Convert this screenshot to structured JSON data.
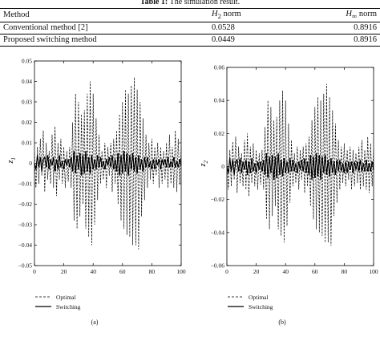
{
  "table": {
    "caption_label": "Table 1:",
    "caption_text": "The simulation result.",
    "headers": {
      "method": "Method",
      "h2_prefix": "H",
      "h2_sub": "2",
      "h2_suffix": " norm",
      "hinf_prefix": "H",
      "hinf_sub": "∞",
      "hinf_suffix": " norm"
    },
    "rows": [
      {
        "method": "Conventional method [2]",
        "h2": "0.0528",
        "hinf": "0.8916"
      },
      {
        "method": "Proposed switching method",
        "h2": "0.0449",
        "hinf": "0.8916"
      }
    ]
  },
  "chart_data": [
    {
      "type": "line",
      "panel": "(a)",
      "ylabel": "z1",
      "xlim": [
        0,
        100
      ],
      "ylim": [
        -0.05,
        0.05
      ],
      "xticks": [
        0,
        20,
        40,
        60,
        80,
        100
      ],
      "yticks": [
        -0.05,
        -0.04,
        -0.03,
        -0.02,
        -0.01,
        0,
        0.01,
        0.02,
        0.03,
        0.04,
        0.05
      ],
      "ytick_labels": [
        "−0.05",
        "−0.04",
        "−0.03",
        "−0.02",
        "−0.01",
        "0",
        "0.01",
        "0.02",
        "0.03",
        "0.04",
        "0.05"
      ],
      "legend": [
        "Optimal",
        "Switching"
      ],
      "series": [
        {
          "name": "Optimal",
          "style": "dashed",
          "x": [
            0,
            1,
            2,
            3,
            4,
            5,
            6,
            7,
            8,
            9,
            10,
            11,
            12,
            13,
            14,
            15,
            16,
            17,
            18,
            19,
            20,
            21,
            22,
            23,
            24,
            25,
            26,
            27,
            28,
            29,
            30,
            31,
            32,
            33,
            34,
            35,
            36,
            37,
            38,
            39,
            40,
            41,
            42,
            43,
            44,
            45,
            46,
            47,
            48,
            49,
            50,
            51,
            52,
            53,
            54,
            55,
            56,
            57,
            58,
            59,
            60,
            61,
            62,
            63,
            64,
            65,
            66,
            67,
            68,
            69,
            70,
            71,
            72,
            73,
            74,
            75,
            76,
            77,
            78,
            79,
            80,
            81,
            82,
            83,
            84,
            85,
            86,
            87,
            88,
            89,
            90,
            91,
            92,
            93,
            94,
            95,
            96,
            97,
            98,
            99,
            100
          ],
          "y": [
            0.005,
            -0.012,
            0.008,
            -0.01,
            0.012,
            -0.006,
            0.016,
            -0.014,
            0.01,
            -0.008,
            0.006,
            -0.01,
            0.014,
            -0.012,
            0.018,
            -0.016,
            0.01,
            -0.008,
            0.012,
            -0.01,
            0.008,
            -0.012,
            0.006,
            -0.009,
            0.008,
            -0.012,
            0.02,
            -0.028,
            0.034,
            -0.032,
            0.03,
            -0.026,
            0.024,
            -0.02,
            0.026,
            -0.032,
            0.034,
            -0.036,
            0.04,
            -0.04,
            0.034,
            -0.03,
            0.022,
            -0.018,
            0.014,
            -0.01,
            0.006,
            -0.008,
            0.01,
            -0.012,
            0.008,
            -0.006,
            0.01,
            -0.014,
            0.012,
            -0.01,
            0.016,
            -0.02,
            0.024,
            -0.028,
            0.03,
            -0.032,
            0.036,
            -0.035,
            0.034,
            -0.036,
            0.038,
            -0.04,
            0.042,
            -0.04,
            0.036,
            -0.042,
            0.03,
            -0.026,
            0.022,
            -0.018,
            0.014,
            -0.012,
            0.01,
            -0.008,
            0.012,
            -0.01,
            0.008,
            -0.006,
            0.01,
            -0.012,
            0.008,
            -0.01,
            0.006,
            -0.008,
            0.01,
            -0.012,
            0.014,
            -0.01,
            0.008,
            -0.012,
            0.016,
            -0.014,
            0.012,
            -0.01,
            0.008
          ]
        },
        {
          "name": "Switching",
          "style": "solid",
          "x": [
            0,
            1,
            2,
            3,
            4,
            5,
            6,
            7,
            8,
            9,
            10,
            11,
            12,
            13,
            14,
            15,
            16,
            17,
            18,
            19,
            20,
            21,
            22,
            23,
            24,
            25,
            26,
            27,
            28,
            29,
            30,
            31,
            32,
            33,
            34,
            35,
            36,
            37,
            38,
            39,
            40,
            41,
            42,
            43,
            44,
            45,
            46,
            47,
            48,
            49,
            50,
            51,
            52,
            53,
            54,
            55,
            56,
            57,
            58,
            59,
            60,
            61,
            62,
            63,
            64,
            65,
            66,
            67,
            68,
            69,
            70,
            71,
            72,
            73,
            74,
            75,
            76,
            77,
            78,
            79,
            80,
            81,
            82,
            83,
            84,
            85,
            86,
            87,
            88,
            89,
            90,
            91,
            92,
            93,
            94,
            95,
            96,
            97,
            98,
            99,
            100
          ],
          "y": [
            0.0,
            -0.003,
            0.004,
            -0.002,
            0.003,
            -0.004,
            0.002,
            0.003,
            -0.002,
            0.004,
            -0.003,
            0.002,
            -0.001,
            0.003,
            -0.004,
            0.002,
            -0.003,
            0.004,
            -0.002,
            0.001,
            -0.003,
            0.002,
            -0.001,
            0.002,
            -0.002,
            0.003,
            -0.004,
            0.006,
            -0.005,
            0.004,
            -0.003,
            0.005,
            -0.006,
            0.004,
            -0.005,
            0.006,
            -0.004,
            0.003,
            -0.005,
            0.004,
            -0.003,
            0.002,
            -0.003,
            0.004,
            -0.002,
            0.003,
            -0.002,
            0.001,
            -0.003,
            0.002,
            -0.001,
            0.003,
            -0.002,
            0.004,
            -0.003,
            0.002,
            -0.004,
            0.005,
            -0.006,
            0.004,
            -0.005,
            0.006,
            -0.004,
            0.005,
            -0.006,
            0.004,
            -0.003,
            0.005,
            -0.004,
            0.003,
            -0.005,
            0.004,
            -0.003,
            0.002,
            -0.004,
            0.003,
            -0.002,
            0.003,
            -0.002,
            0.001,
            -0.003,
            0.002,
            -0.003,
            0.002,
            -0.001,
            0.002,
            -0.003,
            0.002,
            -0.001,
            0.002,
            -0.002,
            0.003,
            -0.002,
            0.001,
            -0.002,
            0.003,
            -0.002,
            0.001,
            -0.002,
            0.002,
            -0.001
          ]
        }
      ]
    },
    {
      "type": "line",
      "panel": "(b)",
      "ylabel": "z2",
      "xlim": [
        0,
        100
      ],
      "ylim": [
        -0.06,
        0.06
      ],
      "xticks": [
        0,
        20,
        40,
        60,
        80,
        100
      ],
      "yticks": [
        -0.06,
        -0.04,
        -0.02,
        0,
        0.02,
        0.04,
        0.06
      ],
      "ytick_labels": [
        "−0.06",
        "−0.04",
        "−0.02",
        "0",
        "0.02",
        "0.04",
        "0.06"
      ],
      "legend": [
        "Optimal",
        "Switching"
      ],
      "series": [
        {
          "name": "Optimal",
          "style": "dashed",
          "x": [
            0,
            1,
            2,
            3,
            4,
            5,
            6,
            7,
            8,
            9,
            10,
            11,
            12,
            13,
            14,
            15,
            16,
            17,
            18,
            19,
            20,
            21,
            22,
            23,
            24,
            25,
            26,
            27,
            28,
            29,
            30,
            31,
            32,
            33,
            34,
            35,
            36,
            37,
            38,
            39,
            40,
            41,
            42,
            43,
            44,
            45,
            46,
            47,
            48,
            49,
            50,
            51,
            52,
            53,
            54,
            55,
            56,
            57,
            58,
            59,
            60,
            61,
            62,
            63,
            64,
            65,
            66,
            67,
            68,
            69,
            70,
            71,
            72,
            73,
            74,
            75,
            76,
            77,
            78,
            79,
            80,
            81,
            82,
            83,
            84,
            85,
            86,
            87,
            88,
            89,
            90,
            91,
            92,
            93,
            94,
            95,
            96,
            97,
            98,
            99,
            100
          ],
          "y": [
            0.004,
            -0.014,
            0.01,
            -0.012,
            0.015,
            -0.008,
            0.018,
            -0.016,
            0.012,
            -0.01,
            0.008,
            -0.012,
            0.016,
            -0.014,
            0.02,
            -0.018,
            0.012,
            -0.01,
            0.014,
            -0.012,
            0.01,
            -0.014,
            0.008,
            -0.011,
            0.01,
            -0.014,
            0.024,
            -0.032,
            0.04,
            -0.038,
            0.036,
            -0.03,
            0.028,
            -0.024,
            0.03,
            -0.038,
            0.04,
            -0.042,
            0.046,
            -0.046,
            0.04,
            -0.036,
            0.026,
            -0.022,
            0.016,
            -0.012,
            0.008,
            -0.01,
            0.012,
            -0.014,
            0.01,
            -0.008,
            0.012,
            -0.016,
            0.014,
            -0.012,
            0.018,
            -0.024,
            0.028,
            -0.032,
            0.036,
            -0.038,
            0.042,
            -0.04,
            0.04,
            -0.042,
            0.044,
            -0.046,
            0.05,
            -0.046,
            0.042,
            -0.048,
            0.034,
            -0.03,
            0.026,
            -0.022,
            0.016,
            -0.014,
            0.012,
            -0.01,
            0.014,
            -0.012,
            0.01,
            -0.008,
            0.012,
            -0.014,
            0.01,
            -0.012,
            0.008,
            -0.01,
            0.012,
            -0.014,
            0.016,
            -0.012,
            0.01,
            -0.014,
            0.018,
            -0.016,
            0.014,
            -0.012,
            0.01
          ]
        },
        {
          "name": "Switching",
          "style": "solid",
          "x": [
            0,
            1,
            2,
            3,
            4,
            5,
            6,
            7,
            8,
            9,
            10,
            11,
            12,
            13,
            14,
            15,
            16,
            17,
            18,
            19,
            20,
            21,
            22,
            23,
            24,
            25,
            26,
            27,
            28,
            29,
            30,
            31,
            32,
            33,
            34,
            35,
            36,
            37,
            38,
            39,
            40,
            41,
            42,
            43,
            44,
            45,
            46,
            47,
            48,
            49,
            50,
            51,
            52,
            53,
            54,
            55,
            56,
            57,
            58,
            59,
            60,
            61,
            62,
            63,
            64,
            65,
            66,
            67,
            68,
            69,
            70,
            71,
            72,
            73,
            74,
            75,
            76,
            77,
            78,
            79,
            80,
            81,
            82,
            83,
            84,
            85,
            86,
            87,
            88,
            89,
            90,
            91,
            92,
            93,
            94,
            95,
            96,
            97,
            98,
            99,
            100
          ],
          "y": [
            0.0,
            -0.004,
            0.005,
            -0.003,
            0.004,
            -0.005,
            0.003,
            0.004,
            -0.003,
            0.005,
            -0.004,
            0.003,
            -0.002,
            0.004,
            -0.005,
            0.003,
            -0.004,
            0.005,
            -0.003,
            0.002,
            -0.004,
            0.003,
            -0.002,
            0.003,
            -0.003,
            0.004,
            -0.005,
            0.008,
            -0.007,
            0.006,
            -0.004,
            0.007,
            -0.008,
            0.006,
            -0.007,
            0.008,
            -0.005,
            0.004,
            -0.006,
            0.005,
            -0.004,
            0.003,
            -0.004,
            0.005,
            -0.003,
            0.004,
            -0.003,
            0.002,
            -0.004,
            0.003,
            -0.002,
            0.004,
            -0.003,
            0.005,
            -0.004,
            0.003,
            -0.005,
            0.007,
            -0.008,
            0.006,
            -0.007,
            0.008,
            -0.006,
            0.007,
            -0.008,
            0.006,
            -0.004,
            0.007,
            -0.005,
            0.004,
            -0.006,
            0.005,
            -0.004,
            0.003,
            -0.005,
            0.004,
            -0.003,
            0.004,
            -0.003,
            0.002,
            -0.004,
            0.003,
            -0.004,
            0.003,
            -0.002,
            0.003,
            -0.004,
            0.003,
            -0.002,
            0.003,
            -0.003,
            0.004,
            -0.003,
            0.002,
            -0.003,
            0.004,
            -0.003,
            0.002,
            -0.003,
            0.003,
            -0.002
          ]
        }
      ]
    }
  ]
}
